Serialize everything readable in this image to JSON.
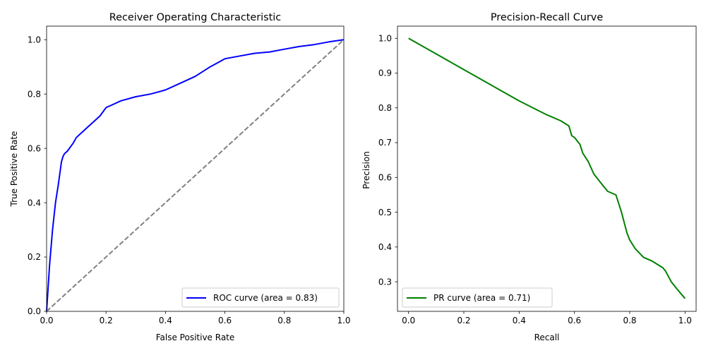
{
  "chart_data": [
    {
      "type": "line",
      "title": "Receiver Operating Characteristic",
      "xlabel": "False Positive Rate",
      "ylabel": "True Positive Rate",
      "xlim": [
        0.0,
        1.0
      ],
      "ylim": [
        0.0,
        1.05
      ],
      "xticks": [
        "0.0",
        "0.2",
        "0.4",
        "0.6",
        "0.8",
        "1.0"
      ],
      "yticks": [
        "0.0",
        "0.2",
        "0.4",
        "0.6",
        "0.8",
        "1.0"
      ],
      "legend_position": "lower-right",
      "grid": false,
      "series": [
        {
          "name": "ROC curve (area = 0.83)",
          "color": "#0000ff",
          "style": "solid",
          "x": [
            0.0,
            0.01,
            0.02,
            0.03,
            0.04,
            0.05,
            0.055,
            0.06,
            0.07,
            0.08,
            0.09,
            0.1,
            0.12,
            0.14,
            0.16,
            0.18,
            0.2,
            0.22,
            0.25,
            0.3,
            0.35,
            0.4,
            0.45,
            0.5,
            0.55,
            0.6,
            0.65,
            0.7,
            0.75,
            0.8,
            0.85,
            0.9,
            0.95,
            1.0
          ],
          "y": [
            0.0,
            0.17,
            0.3,
            0.4,
            0.47,
            0.55,
            0.57,
            0.58,
            0.59,
            0.605,
            0.62,
            0.64,
            0.66,
            0.68,
            0.7,
            0.72,
            0.75,
            0.76,
            0.775,
            0.79,
            0.8,
            0.815,
            0.84,
            0.865,
            0.9,
            0.93,
            0.94,
            0.95,
            0.955,
            0.965,
            0.975,
            0.982,
            0.992,
            1.0
          ]
        },
        {
          "name": "",
          "color": "#808080",
          "style": "dashed",
          "x": [
            0.0,
            1.0
          ],
          "y": [
            0.0,
            1.0
          ]
        }
      ]
    },
    {
      "type": "line",
      "title": "Precision-Recall Curve",
      "xlabel": "Recall",
      "ylabel": "Precision",
      "xlim": [
        -0.04,
        1.04
      ],
      "ylim": [
        0.215,
        1.035
      ],
      "xticks": [
        "0.0",
        "0.2",
        "0.4",
        "0.6",
        "0.8",
        "1.0"
      ],
      "yticks": [
        "0.3",
        "0.4",
        "0.5",
        "0.6",
        "0.7",
        "0.8",
        "0.9",
        "1.0"
      ],
      "legend_position": "lower-left",
      "grid": false,
      "series": [
        {
          "name": "PR curve (area = 0.71)",
          "color": "#008000",
          "style": "solid",
          "x": [
            0.0,
            0.1,
            0.2,
            0.3,
            0.4,
            0.5,
            0.55,
            0.58,
            0.59,
            0.6,
            0.62,
            0.63,
            0.65,
            0.67,
            0.7,
            0.72,
            0.75,
            0.77,
            0.78,
            0.79,
            0.8,
            0.82,
            0.85,
            0.88,
            0.9,
            0.92,
            0.93,
            0.95,
            0.97,
            1.0
          ],
          "y": [
            1.0,
            0.955,
            0.91,
            0.865,
            0.82,
            0.78,
            0.763,
            0.748,
            0.72,
            0.715,
            0.695,
            0.67,
            0.645,
            0.61,
            0.58,
            0.56,
            0.55,
            0.5,
            0.47,
            0.44,
            0.42,
            0.395,
            0.37,
            0.36,
            0.35,
            0.34,
            0.33,
            0.3,
            0.28,
            0.252
          ]
        }
      ]
    }
  ]
}
